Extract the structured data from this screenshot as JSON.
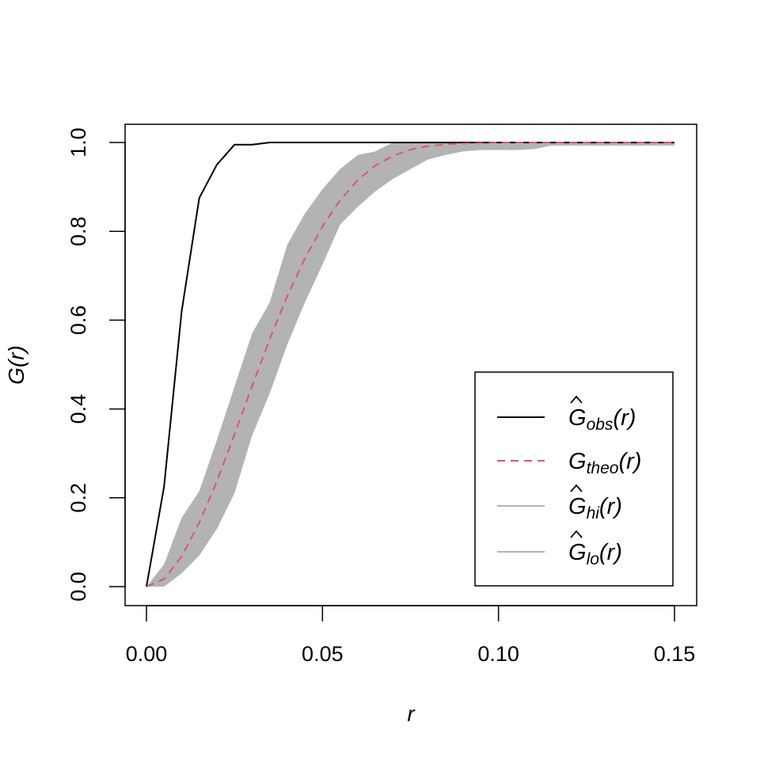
{
  "chart_data": {
    "type": "line",
    "title": "",
    "xlabel": "r",
    "ylabel": "G(r)",
    "xlim": [
      0,
      0.15
    ],
    "ylim": [
      0,
      1
    ],
    "grid": false,
    "legend_position": "bottom-right",
    "x_ticks": [
      0.0,
      0.05,
      0.1,
      0.15
    ],
    "x_tick_labels": [
      "0.00",
      "0.05",
      "0.10",
      "0.15"
    ],
    "y_ticks": [
      0.0,
      0.2,
      0.4,
      0.6,
      0.8,
      1.0
    ],
    "y_tick_labels": [
      "0.0",
      "0.2",
      "0.4",
      "0.6",
      "0.8",
      "1.0"
    ],
    "x": [
      0.0,
      0.005,
      0.01,
      0.015,
      0.02,
      0.025,
      0.03,
      0.035,
      0.04,
      0.045,
      0.05,
      0.055,
      0.06,
      0.065,
      0.07,
      0.075,
      0.08,
      0.085,
      0.09,
      0.095,
      0.1,
      0.105,
      0.11,
      0.115,
      0.12,
      0.125,
      0.13,
      0.135,
      0.14,
      0.145,
      0.15
    ],
    "envelope": {
      "hi": [
        0.0,
        0.05,
        0.155,
        0.215,
        0.33,
        0.45,
        0.57,
        0.64,
        0.77,
        0.84,
        0.895,
        0.94,
        0.972,
        0.98,
        1.0,
        1.0,
        1.0,
        1.0,
        1.0,
        1.0,
        1.0,
        1.0,
        1.0,
        1.0,
        1.0,
        1.0,
        1.0,
        1.0,
        1.0,
        1.0,
        1.0
      ],
      "lo": [
        0.0,
        0.0,
        0.03,
        0.07,
        0.13,
        0.21,
        0.34,
        0.435,
        0.545,
        0.64,
        0.725,
        0.815,
        0.855,
        0.89,
        0.918,
        0.94,
        0.962,
        0.972,
        0.98,
        0.983,
        0.983,
        0.983,
        0.985,
        0.993,
        0.993,
        0.993,
        0.993,
        0.993,
        0.993,
        0.993,
        0.993
      ],
      "color": "#b3b3b3"
    },
    "series": [
      {
        "name": "obs",
        "color": "#000000",
        "style": "solid",
        "values": [
          0.0,
          0.225,
          0.62,
          0.875,
          0.95,
          0.995,
          0.995,
          1.0,
          1.0,
          1.0,
          1.0,
          1.0,
          1.0,
          1.0,
          1.0,
          1.0,
          1.0,
          1.0,
          1.0,
          1.0,
          1.0,
          1.0,
          1.0,
          1.0,
          1.0,
          1.0,
          1.0,
          1.0,
          1.0,
          1.0,
          1.0
        ]
      },
      {
        "name": "theo",
        "color": "#df536b",
        "style": "dashed",
        "values": [
          0.0,
          0.017,
          0.068,
          0.144,
          0.237,
          0.343,
          0.451,
          0.557,
          0.654,
          0.739,
          0.811,
          0.87,
          0.915,
          0.948,
          0.97,
          0.984,
          0.992,
          0.996,
          0.998,
          0.999,
          1.0,
          1.0,
          1.0,
          1.0,
          1.0,
          1.0,
          1.0,
          1.0,
          1.0,
          1.0,
          1.0
        ]
      }
    ],
    "legend": [
      {
        "key": "obs",
        "base": "G",
        "hat": true,
        "sub": "obs",
        "tail": "(r)",
        "color": "#000000",
        "style": "solid"
      },
      {
        "key": "theo",
        "base": "G",
        "hat": false,
        "sub": "theo",
        "tail": "(r)",
        "color": "#df536b",
        "style": "dashed"
      },
      {
        "key": "hi",
        "base": "G",
        "hat": true,
        "sub": "hi",
        "tail": "(r)",
        "color": "#b3b3b3",
        "style": "solid"
      },
      {
        "key": "lo",
        "base": "G",
        "hat": true,
        "sub": "lo",
        "tail": "(r)",
        "color": "#b3b3b3",
        "style": "solid"
      }
    ]
  }
}
